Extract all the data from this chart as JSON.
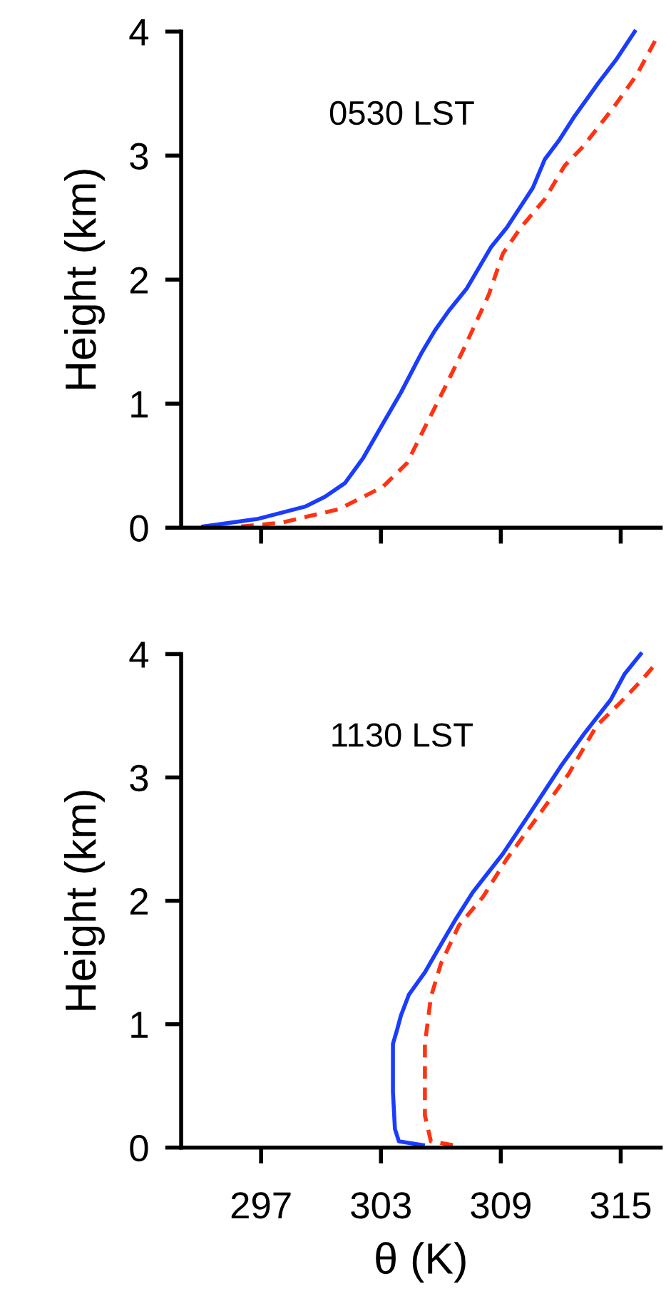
{
  "chart_data": [
    {
      "type": "line",
      "ylabel": "Height (km)",
      "annotations": [
        "0530 LST"
      ],
      "xlim": [
        293,
        317
      ],
      "xticks": [
        297,
        303,
        309,
        315
      ],
      "ylim": [
        0,
        4
      ],
      "yticks": [
        0,
        1,
        2,
        3,
        4
      ],
      "tick_labels": "y",
      "grid": false,
      "series": [
        {
          "color": "#1a3cff",
          "line_style": "solid",
          "x": [
            294.1,
            296.8,
            299.2,
            300.2,
            301.2,
            302.1,
            303.1,
            304.0,
            305.0,
            305.7,
            306.4,
            307.3,
            308.5,
            309.3,
            310.6,
            311.2,
            311.9,
            312.7,
            313.9,
            314.8,
            315.7
          ],
          "values": [
            0.01,
            0.07,
            0.17,
            0.25,
            0.36,
            0.56,
            0.84,
            1.09,
            1.4,
            1.59,
            1.75,
            1.93,
            2.26,
            2.42,
            2.74,
            2.97,
            3.12,
            3.32,
            3.59,
            3.78,
            4.0
          ]
        },
        {
          "color": "#ff3311",
          "line_style": "dashed",
          "x": [
            296.0,
            298.0,
            300.9,
            303.1,
            304.3,
            305.2,
            306.2,
            307.2,
            308.4,
            309.1,
            310.0,
            311.2,
            312.2,
            313.1,
            314.6,
            315.8,
            316.8
          ],
          "values": [
            0.01,
            0.04,
            0.15,
            0.33,
            0.52,
            0.81,
            1.13,
            1.46,
            1.88,
            2.21,
            2.42,
            2.65,
            2.92,
            3.07,
            3.38,
            3.65,
            3.95
          ]
        }
      ]
    },
    {
      "type": "line",
      "ylabel": "Height (km)",
      "xlabel": "θ (K)",
      "annotations": [
        "1130 LST"
      ],
      "xlim": [
        293,
        317
      ],
      "xticks": [
        297,
        303,
        309,
        315
      ],
      "ylim": [
        0,
        4
      ],
      "yticks": [
        0,
        1,
        2,
        3,
        4
      ],
      "grid": false,
      "series": [
        {
          "color": "#1a3cff",
          "line_style": "solid",
          "x": [
            305.1,
            303.9,
            303.7,
            303.6,
            303.6,
            303.8,
            304.0,
            304.4,
            305.2,
            305.8,
            306.7,
            307.6,
            309.1,
            310.5,
            312.0,
            313.2,
            314.5,
            315.2,
            316.0
          ],
          "values": [
            0.02,
            0.05,
            0.15,
            0.45,
            0.84,
            0.95,
            1.07,
            1.24,
            1.42,
            1.59,
            1.84,
            2.07,
            2.38,
            2.72,
            3.09,
            3.36,
            3.63,
            3.84,
            4.0
          ]
        },
        {
          "color": "#ff3311",
          "line_style": "dashed",
          "x": [
            306.6,
            305.5,
            305.2,
            305.2,
            305.5,
            306.0,
            306.9,
            308.1,
            309.3,
            310.7,
            312.4,
            313.8,
            315.0,
            316.0,
            316.8
          ],
          "values": [
            0.02,
            0.05,
            0.26,
            0.84,
            1.22,
            1.49,
            1.8,
            2.03,
            2.34,
            2.65,
            3.03,
            3.42,
            3.61,
            3.78,
            3.93
          ]
        }
      ]
    }
  ]
}
